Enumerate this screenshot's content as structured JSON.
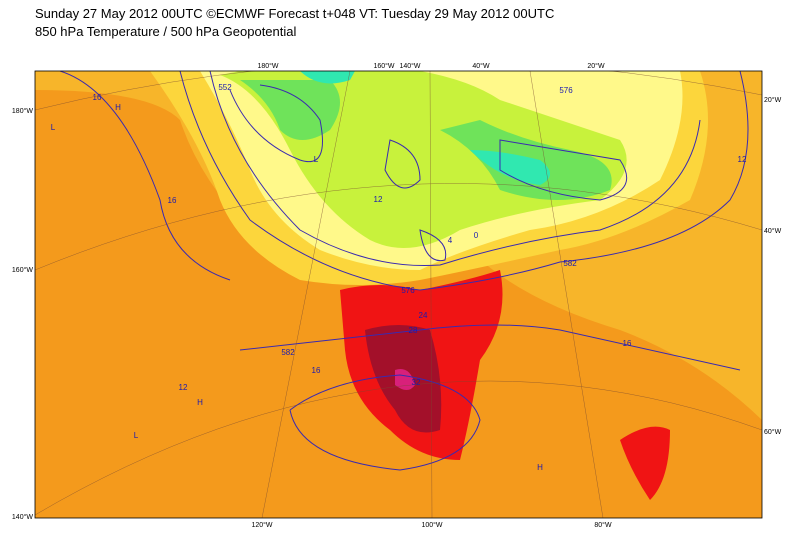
{
  "header": {
    "title": "Sunday 27 May 2012 00UTC ©ECMWF Forecast t+048 VT: Tuesday 29 May 2012 00UTC",
    "subtitle": "850 hPa Temperature / 500 hPa Geopotential"
  },
  "map": {
    "top_labels": [
      "180°W",
      "160°W",
      "140°W",
      "40°W",
      "20°W"
    ],
    "left_labels": [
      "180°W",
      "160°W",
      "140°W"
    ],
    "right_labels": [
      "20°W",
      "40°W",
      "60°W"
    ],
    "bottom_labels": [
      "120°W",
      "100°W",
      "80°W"
    ],
    "contour_labels": [
      "16",
      "16",
      "12",
      "12",
      "16",
      "16",
      "582",
      "576",
      "582",
      "12",
      "4",
      "0",
      "24",
      "28",
      "32",
      "552",
      "576",
      "L",
      "H",
      "L",
      "H",
      "L",
      "H"
    ]
  }
}
